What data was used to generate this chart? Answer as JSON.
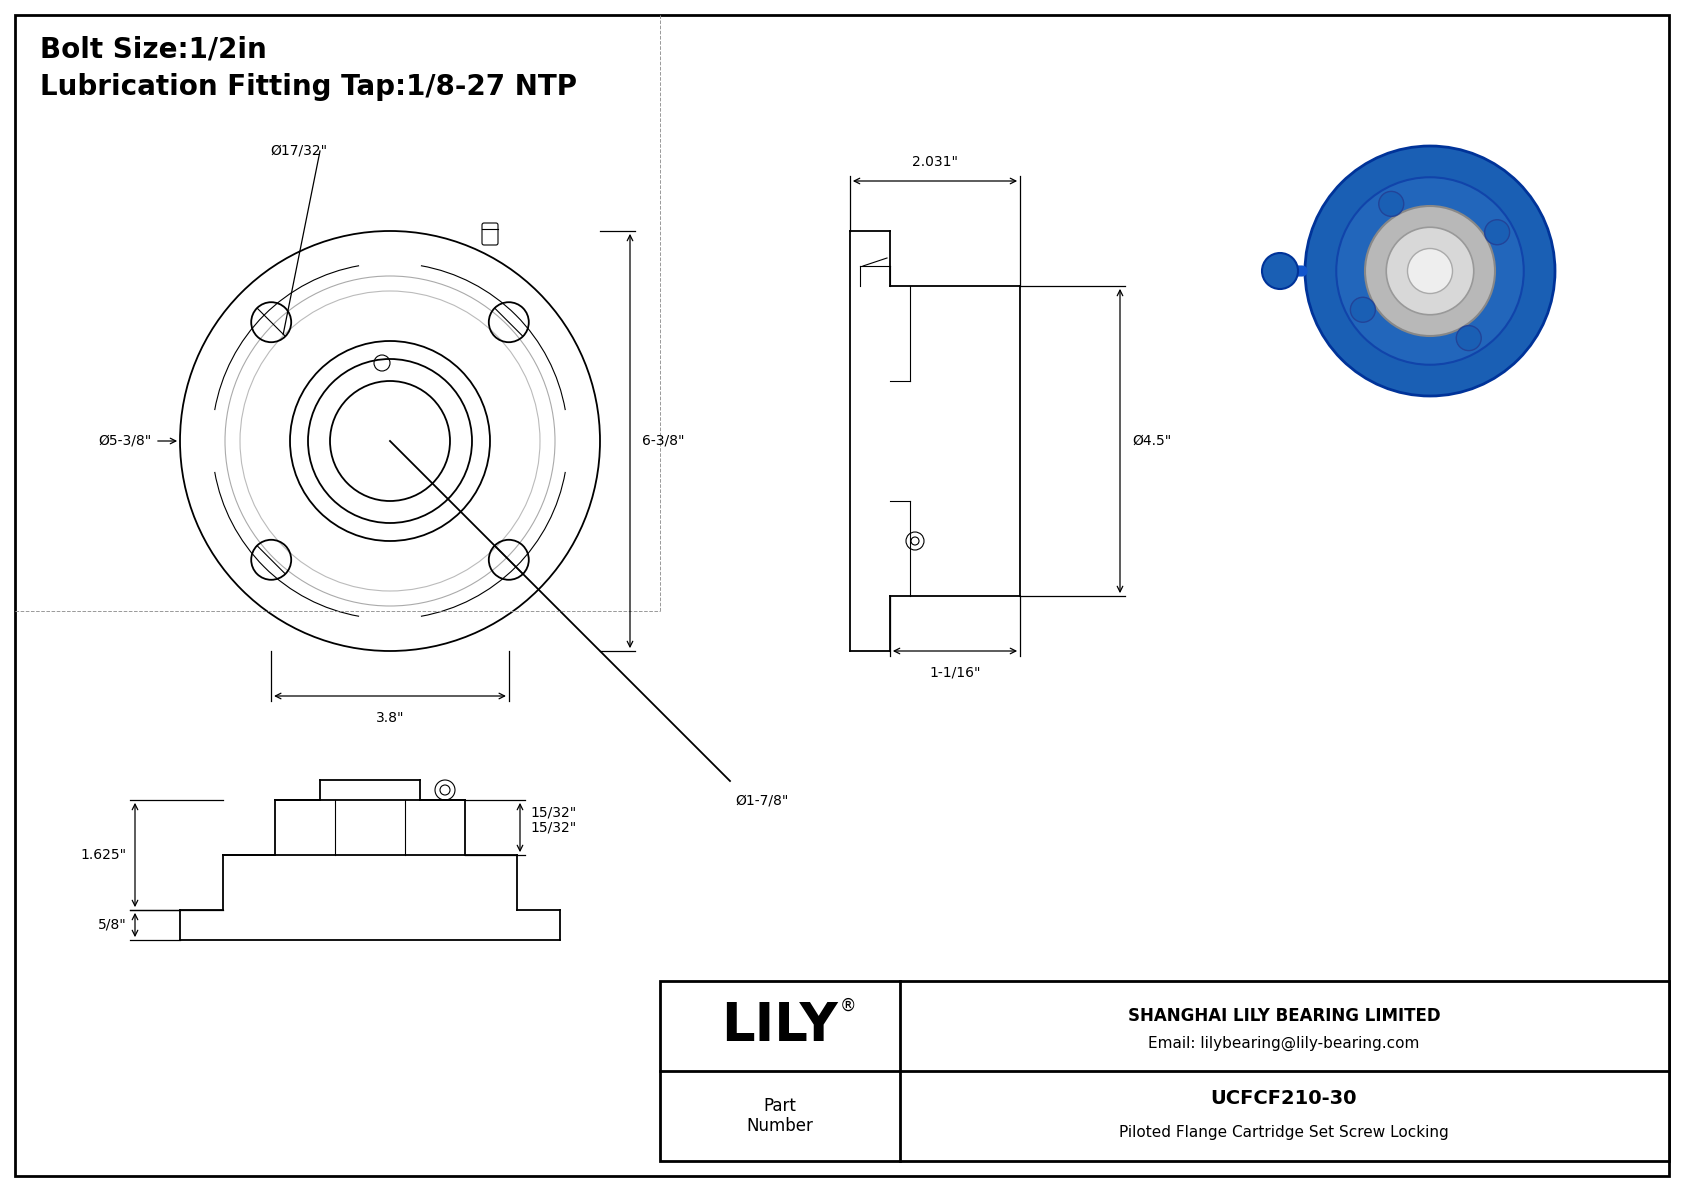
{
  "bg_color": "#ffffff",
  "line_color": "#000000",
  "title_line1": "Bolt Size:1/2in",
  "title_line2": "Lubrication Fitting Tap:1/8-27 NTP",
  "title_fontsize": 20,
  "company_name": "SHANGHAI LILY BEARING LIMITED",
  "company_email": "Email: lilybearing@lily-bearing.com",
  "part_label": "Part\nNumber",
  "part_number": "UCFCF210-30",
  "part_desc": "Piloted Flange Cartridge Set Screw Locking",
  "logo_text": "LILY",
  "logo_reg": "®",
  "dim_bolt_hole": "Ø17/32\"",
  "dim_flange_dia": "Ø5-3/8\"",
  "dim_bore_dia": "Ø1-7/8\"",
  "dim_bolt_circle": "3.8\"",
  "dim_height": "6-3/8\"",
  "dim_side_width": "2.031\"",
  "dim_side_depth": "1-1/16\"",
  "dim_outer_dia": "Ø4.5\"",
  "dim_bottom_height": "1.625\"",
  "dim_bottom_step": "15/32\"",
  "dim_bottom_base": "5/8\""
}
